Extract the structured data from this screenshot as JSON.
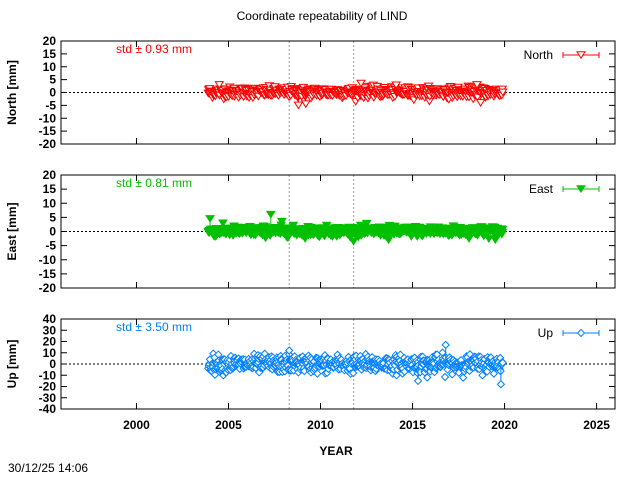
{
  "chart_data": {
    "type": "scatter",
    "title": "Coordinate repeatability of LIND",
    "xlabel": "YEAR",
    "xlim": [
      1995.9,
      2026.0
    ],
    "xticks": [
      2000,
      2005,
      2010,
      2015,
      2020,
      2025
    ],
    "vertical_markers": [
      2008.3,
      2011.8
    ],
    "timestamp": "30/12/25 14:06",
    "data_span": [
      2003.9,
      2019.9
    ],
    "panels": [
      {
        "name": "North",
        "ylabel": "North [mm]",
        "ylim": [
          -20,
          20
        ],
        "yticks": [
          20,
          15,
          10,
          5,
          0,
          -5,
          -10,
          -15,
          -20
        ],
        "std_label": "std ± 0.93 mm",
        "color": "#ff0000",
        "marker": "triangle-down-open",
        "legend": "North",
        "legend_position": "top-right",
        "std": 0.93,
        "outliers": [
          [
            2004.5,
            3
          ],
          [
            2008.8,
            -5
          ],
          [
            2009.2,
            -4.5
          ],
          [
            2012.2,
            3.5
          ],
          [
            2018.5,
            3
          ],
          [
            2018.7,
            -4
          ]
        ]
      },
      {
        "name": "East",
        "ylabel": "East [mm]",
        "ylim": [
          -20,
          20
        ],
        "yticks": [
          20,
          15,
          10,
          5,
          0,
          -5,
          -10,
          -15,
          -20
        ],
        "std_label": "std ± 0.81 mm",
        "color": "#00c000",
        "marker": "triangle-down-filled",
        "legend": "East",
        "legend_position": "top-right",
        "std": 0.81,
        "outliers": [
          [
            2004.0,
            4.5
          ],
          [
            2007.3,
            6
          ],
          [
            2007.9,
            3.5
          ],
          [
            2013.7,
            -3
          ],
          [
            2019.5,
            -3
          ]
        ]
      },
      {
        "name": "Up",
        "ylabel": "Up [mm]",
        "ylim": [
          -40,
          40
        ],
        "yticks": [
          40,
          30,
          20,
          10,
          0,
          -10,
          -20,
          -30,
          -40
        ],
        "std_label": "std ± 3.50 mm",
        "color": "#0080ff",
        "marker": "diamond-open",
        "legend": "Up",
        "legend_position": "top-right",
        "std": 3.5,
        "outliers": [
          [
            2008.3,
            12
          ],
          [
            2016.8,
            17
          ],
          [
            2015.3,
            -15
          ],
          [
            2015.8,
            -12
          ],
          [
            2019.8,
            -18
          ]
        ]
      }
    ]
  }
}
